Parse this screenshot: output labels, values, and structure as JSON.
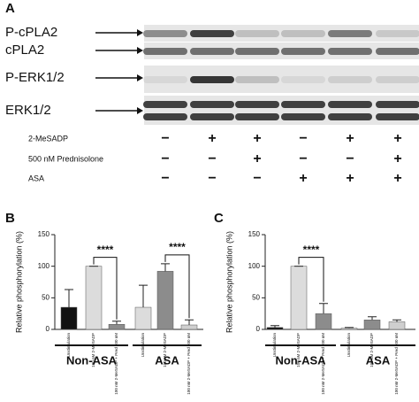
{
  "panel_labels": [
    "A",
    "B",
    "C"
  ],
  "blot": {
    "rows": [
      "P-cPLA2",
      "cPLA2",
      "P-ERK1/2",
      "ERK1/2"
    ],
    "treatments": [
      {
        "name": "2-MeSADP",
        "signs": [
          "−",
          "+",
          "+",
          "−",
          "+",
          "+"
        ]
      },
      {
        "name": "500 nM Prednisolone",
        "signs": [
          "−",
          "−",
          "+",
          "−",
          "−",
          "+"
        ]
      },
      {
        "name": "ASA",
        "signs": [
          "−",
          "−",
          "−",
          "+",
          "+",
          "+"
        ]
      }
    ]
  },
  "chart_data": [
    {
      "type": "bar",
      "y_label": "Relative phosphorylation (%)",
      "categories": [
        "Unstimulation",
        "100 nM 2-MeSADP",
        "100 nM 2-MeSADP + Pred 500 nM",
        "Unstimulation",
        "100 nM 2-MeSADP",
        "100 nM 2-MeSADP + Pred 500 nM"
      ],
      "values": [
        35,
        100,
        8,
        35,
        92,
        7
      ],
      "errors": [
        28,
        0,
        5,
        35,
        12,
        8
      ],
      "colors": [
        "#111111",
        "#dcdcdc",
        "#8c8c8c",
        "#dcdcdc",
        "#8c8c8c",
        "#cfcfcf"
      ],
      "ylim": [
        0,
        150
      ],
      "yticks": [
        0,
        50,
        100,
        150
      ],
      "groups": [
        "Non-ASA",
        "ASA"
      ],
      "annotations": [
        "****",
        "****"
      ]
    },
    {
      "type": "bar",
      "y_label": "Relative phosphorylation (%)",
      "categories": [
        "Unstimulation",
        "100 nM 2-MeSADP",
        "100 nM 2-MeSADP + Pred 500 nM",
        "Unstimulation",
        "100 nM 2-MeSADP",
        "100 nM 2-MeSADP + Pred 500 nM"
      ],
      "values": [
        3,
        100,
        25,
        2,
        15,
        12
      ],
      "errors": [
        3,
        0,
        16,
        1,
        5,
        3
      ],
      "colors": [
        "#111111",
        "#dcdcdc",
        "#8c8c8c",
        "#dcdcdc",
        "#8c8c8c",
        "#cfcfcf"
      ],
      "ylim": [
        0,
        150
      ],
      "yticks": [
        0,
        50,
        100,
        150
      ],
      "groups": [
        "Non-ASA",
        "ASA"
      ],
      "annotations": [
        "****"
      ]
    }
  ]
}
